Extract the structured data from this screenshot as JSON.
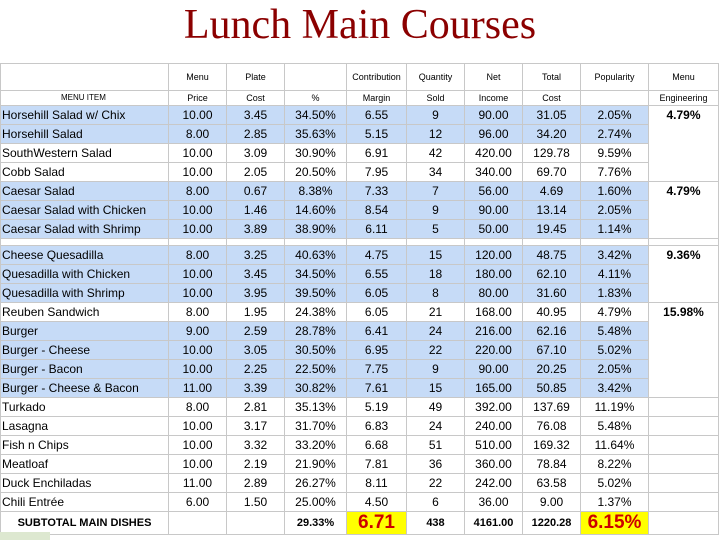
{
  "title": "Lunch Main Courses",
  "header_row1": [
    "",
    "Menu",
    "Plate",
    "",
    "Contribution",
    "Quantity",
    "Net",
    "Total",
    "Popularity",
    "Menu"
  ],
  "header_row2": [
    "MENU ITEM",
    "Price",
    "Cost",
    "%",
    "Margin",
    "Sold",
    "Income",
    "Cost",
    "",
    "Engineering"
  ],
  "groups": [
    {
      "engineering": "4.79%",
      "rows": [
        {
          "name": "Horsehill Salad w/ Chix",
          "price": "10.00",
          "cost": "3.45",
          "pct": "34.50%",
          "margin": "6.55",
          "qty": "9",
          "income": "90.00",
          "total": "31.05",
          "pop": "2.05%",
          "color": "blue"
        },
        {
          "name": "Horsehill Salad",
          "price": "8.00",
          "cost": "2.85",
          "pct": "35.63%",
          "margin": "5.15",
          "qty": "12",
          "income": "96.00",
          "total": "34.20",
          "pop": "2.74%",
          "color": "blue"
        },
        {
          "name": "SouthWestern Salad",
          "price": "10.00",
          "cost": "3.09",
          "pct": "30.90%",
          "margin": "6.91",
          "qty": "42",
          "income": "420.00",
          "total": "129.78",
          "pop": "9.59%",
          "color": "white"
        },
        {
          "name": "Cobb Salad",
          "price": "10.00",
          "cost": "2.05",
          "pct": "20.50%",
          "margin": "7.95",
          "qty": "34",
          "income": "340.00",
          "total": "69.70",
          "pop": "7.76%",
          "color": "white"
        }
      ]
    },
    {
      "engineering": "4.79%",
      "rows": [
        {
          "name": "Caesar Salad",
          "price": "8.00",
          "cost": "0.67",
          "pct": "8.38%",
          "margin": "7.33",
          "qty": "7",
          "income": "56.00",
          "total": "4.69",
          "pop": "1.60%",
          "color": "blue"
        },
        {
          "name": "Caesar Salad with Chicken",
          "price": "10.00",
          "cost": "1.46",
          "pct": "14.60%",
          "margin": "8.54",
          "qty": "9",
          "income": "90.00",
          "total": "13.14",
          "pop": "2.05%",
          "color": "blue"
        },
        {
          "name": "Caesar Salad with Shrimp",
          "price": "10.00",
          "cost": "3.89",
          "pct": "38.90%",
          "margin": "6.11",
          "qty": "5",
          "income": "50.00",
          "total": "19.45",
          "pop": "1.14%",
          "color": "blue"
        }
      ]
    },
    {
      "engineering": "9.36%",
      "rows": [
        {
          "name": "Cheese Quesadilla",
          "price": "8.00",
          "cost": "3.25",
          "pct": "40.63%",
          "margin": "4.75",
          "qty": "15",
          "income": "120.00",
          "total": "48.75",
          "pop": "3.42%",
          "color": "blue"
        },
        {
          "name": "Quesadilla with Chicken",
          "price": "10.00",
          "cost": "3.45",
          "pct": "34.50%",
          "margin": "6.55",
          "qty": "18",
          "income": "180.00",
          "total": "62.10",
          "pop": "4.11%",
          "color": "blue"
        },
        {
          "name": "Quesadilla with Shrimp",
          "price": "10.00",
          "cost": "3.95",
          "pct": "39.50%",
          "margin": "6.05",
          "qty": "8",
          "income": "80.00",
          "total": "31.60",
          "pop": "1.83%",
          "color": "blue"
        }
      ]
    },
    {
      "engineering": "15.98%",
      "rows": [
        {
          "name": "Reuben Sandwich",
          "price": "8.00",
          "cost": "1.95",
          "pct": "24.38%",
          "margin": "6.05",
          "qty": "21",
          "income": "168.00",
          "total": "40.95",
          "pop": "4.79%",
          "color": "white"
        },
        {
          "name": "Burger",
          "price": "9.00",
          "cost": "2.59",
          "pct": "28.78%",
          "margin": "6.41",
          "qty": "24",
          "income": "216.00",
          "total": "62.16",
          "pop": "5.48%",
          "color": "blue"
        },
        {
          "name": "Burger - Cheese",
          "price": "10.00",
          "cost": "3.05",
          "pct": "30.50%",
          "margin": "6.95",
          "qty": "22",
          "income": "220.00",
          "total": "67.10",
          "pop": "5.02%",
          "color": "blue"
        },
        {
          "name": "Burger - Bacon",
          "price": "10.00",
          "cost": "2.25",
          "pct": "22.50%",
          "margin": "7.75",
          "qty": "9",
          "income": "90.00",
          "total": "20.25",
          "pop": "2.05%",
          "color": "blue"
        },
        {
          "name": "Burger - Cheese & Bacon",
          "price": "11.00",
          "cost": "3.39",
          "pct": "30.82%",
          "margin": "7.61",
          "qty": "15",
          "income": "165.00",
          "total": "50.85",
          "pop": "3.42%",
          "color": "blue"
        },
        {
          "name": "Turkado",
          "price": "8.00",
          "cost": "2.81",
          "pct": "35.13%",
          "margin": "5.19",
          "qty": "49",
          "income": "392.00",
          "total": "137.69",
          "pop": "11.19%",
          "color": "white"
        },
        {
          "name": "Lasagna",
          "price": "10.00",
          "cost": "3.17",
          "pct": "31.70%",
          "margin": "6.83",
          "qty": "24",
          "income": "240.00",
          "total": "76.08",
          "pop": "5.48%",
          "color": "white"
        },
        {
          "name": "Fish n Chips",
          "price": "10.00",
          "cost": "3.32",
          "pct": "33.20%",
          "margin": "6.68",
          "qty": "51",
          "income": "510.00",
          "total": "169.32",
          "pop": "11.64%",
          "color": "white"
        },
        {
          "name": "Meatloaf",
          "price": "10.00",
          "cost": "2.19",
          "pct": "21.90%",
          "margin": "7.81",
          "qty": "36",
          "income": "360.00",
          "total": "78.84",
          "pop": "8.22%",
          "color": "white"
        },
        {
          "name": "Duck Enchiladas",
          "price": "11.00",
          "cost": "2.89",
          "pct": "26.27%",
          "margin": "8.11",
          "qty": "22",
          "income": "242.00",
          "total": "63.58",
          "pop": "5.02%",
          "color": "white"
        },
        {
          "name": "Chili Entrée",
          "price": "6.00",
          "cost": "1.50",
          "pct": "25.00%",
          "margin": "4.50",
          "qty": "6",
          "income": "36.00",
          "total": "9.00",
          "pop": "1.37%",
          "color": "white"
        }
      ]
    }
  ],
  "subtotal": {
    "name": "SUBTOTAL MAIN DISHES",
    "price": "",
    "cost": "",
    "pct": "29.33%",
    "margin": "6.71",
    "qty": "438",
    "income": "4161.00",
    "total": "1220.28",
    "pop": "6.15%"
  },
  "colors": {
    "blue_row": "#c6dbf7",
    "highlight": "#ffff00",
    "highlight_text": "#cc0000",
    "title": "#8b0000"
  }
}
